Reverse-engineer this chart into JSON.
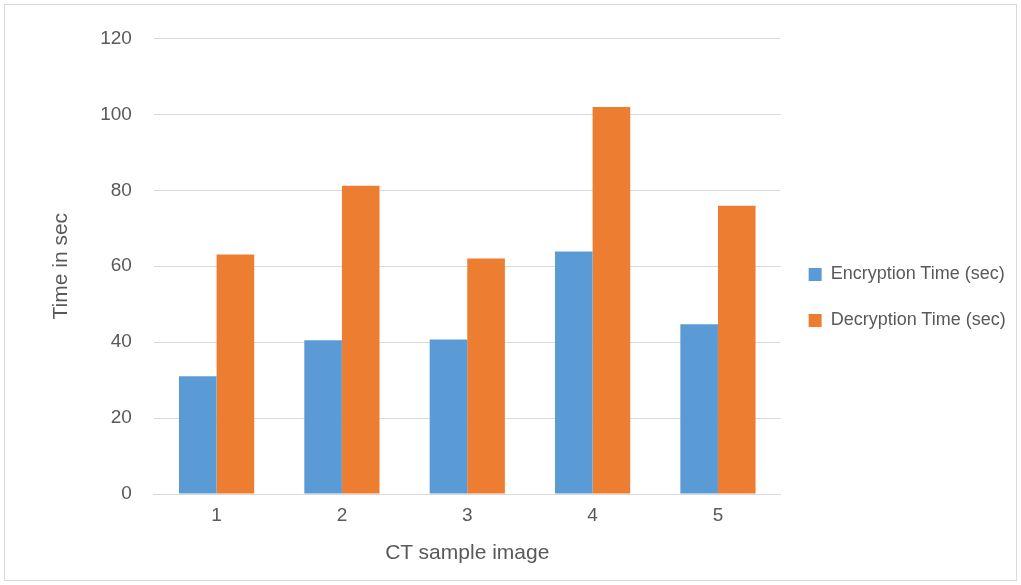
{
  "chart_data": {
    "type": "bar",
    "xlabel": "CT sample image",
    "ylabel": "Time in sec",
    "categories": [
      "1",
      "2",
      "3",
      "4",
      "5"
    ],
    "series": [
      {
        "name": "Encryption Time (sec)",
        "color": "#5b9bd5",
        "values": [
          31,
          40.5,
          40.7,
          63.9,
          44.7
        ]
      },
      {
        "name": "Decryption Time (sec)",
        "color": "#ed7d31",
        "values": [
          63.1,
          81.2,
          62,
          101.9,
          75.9
        ]
      }
    ],
    "ylim": [
      0,
      120
    ],
    "yticks": [
      0,
      20,
      40,
      60,
      80,
      100,
      120
    ],
    "grid": "y",
    "legend": "right"
  }
}
